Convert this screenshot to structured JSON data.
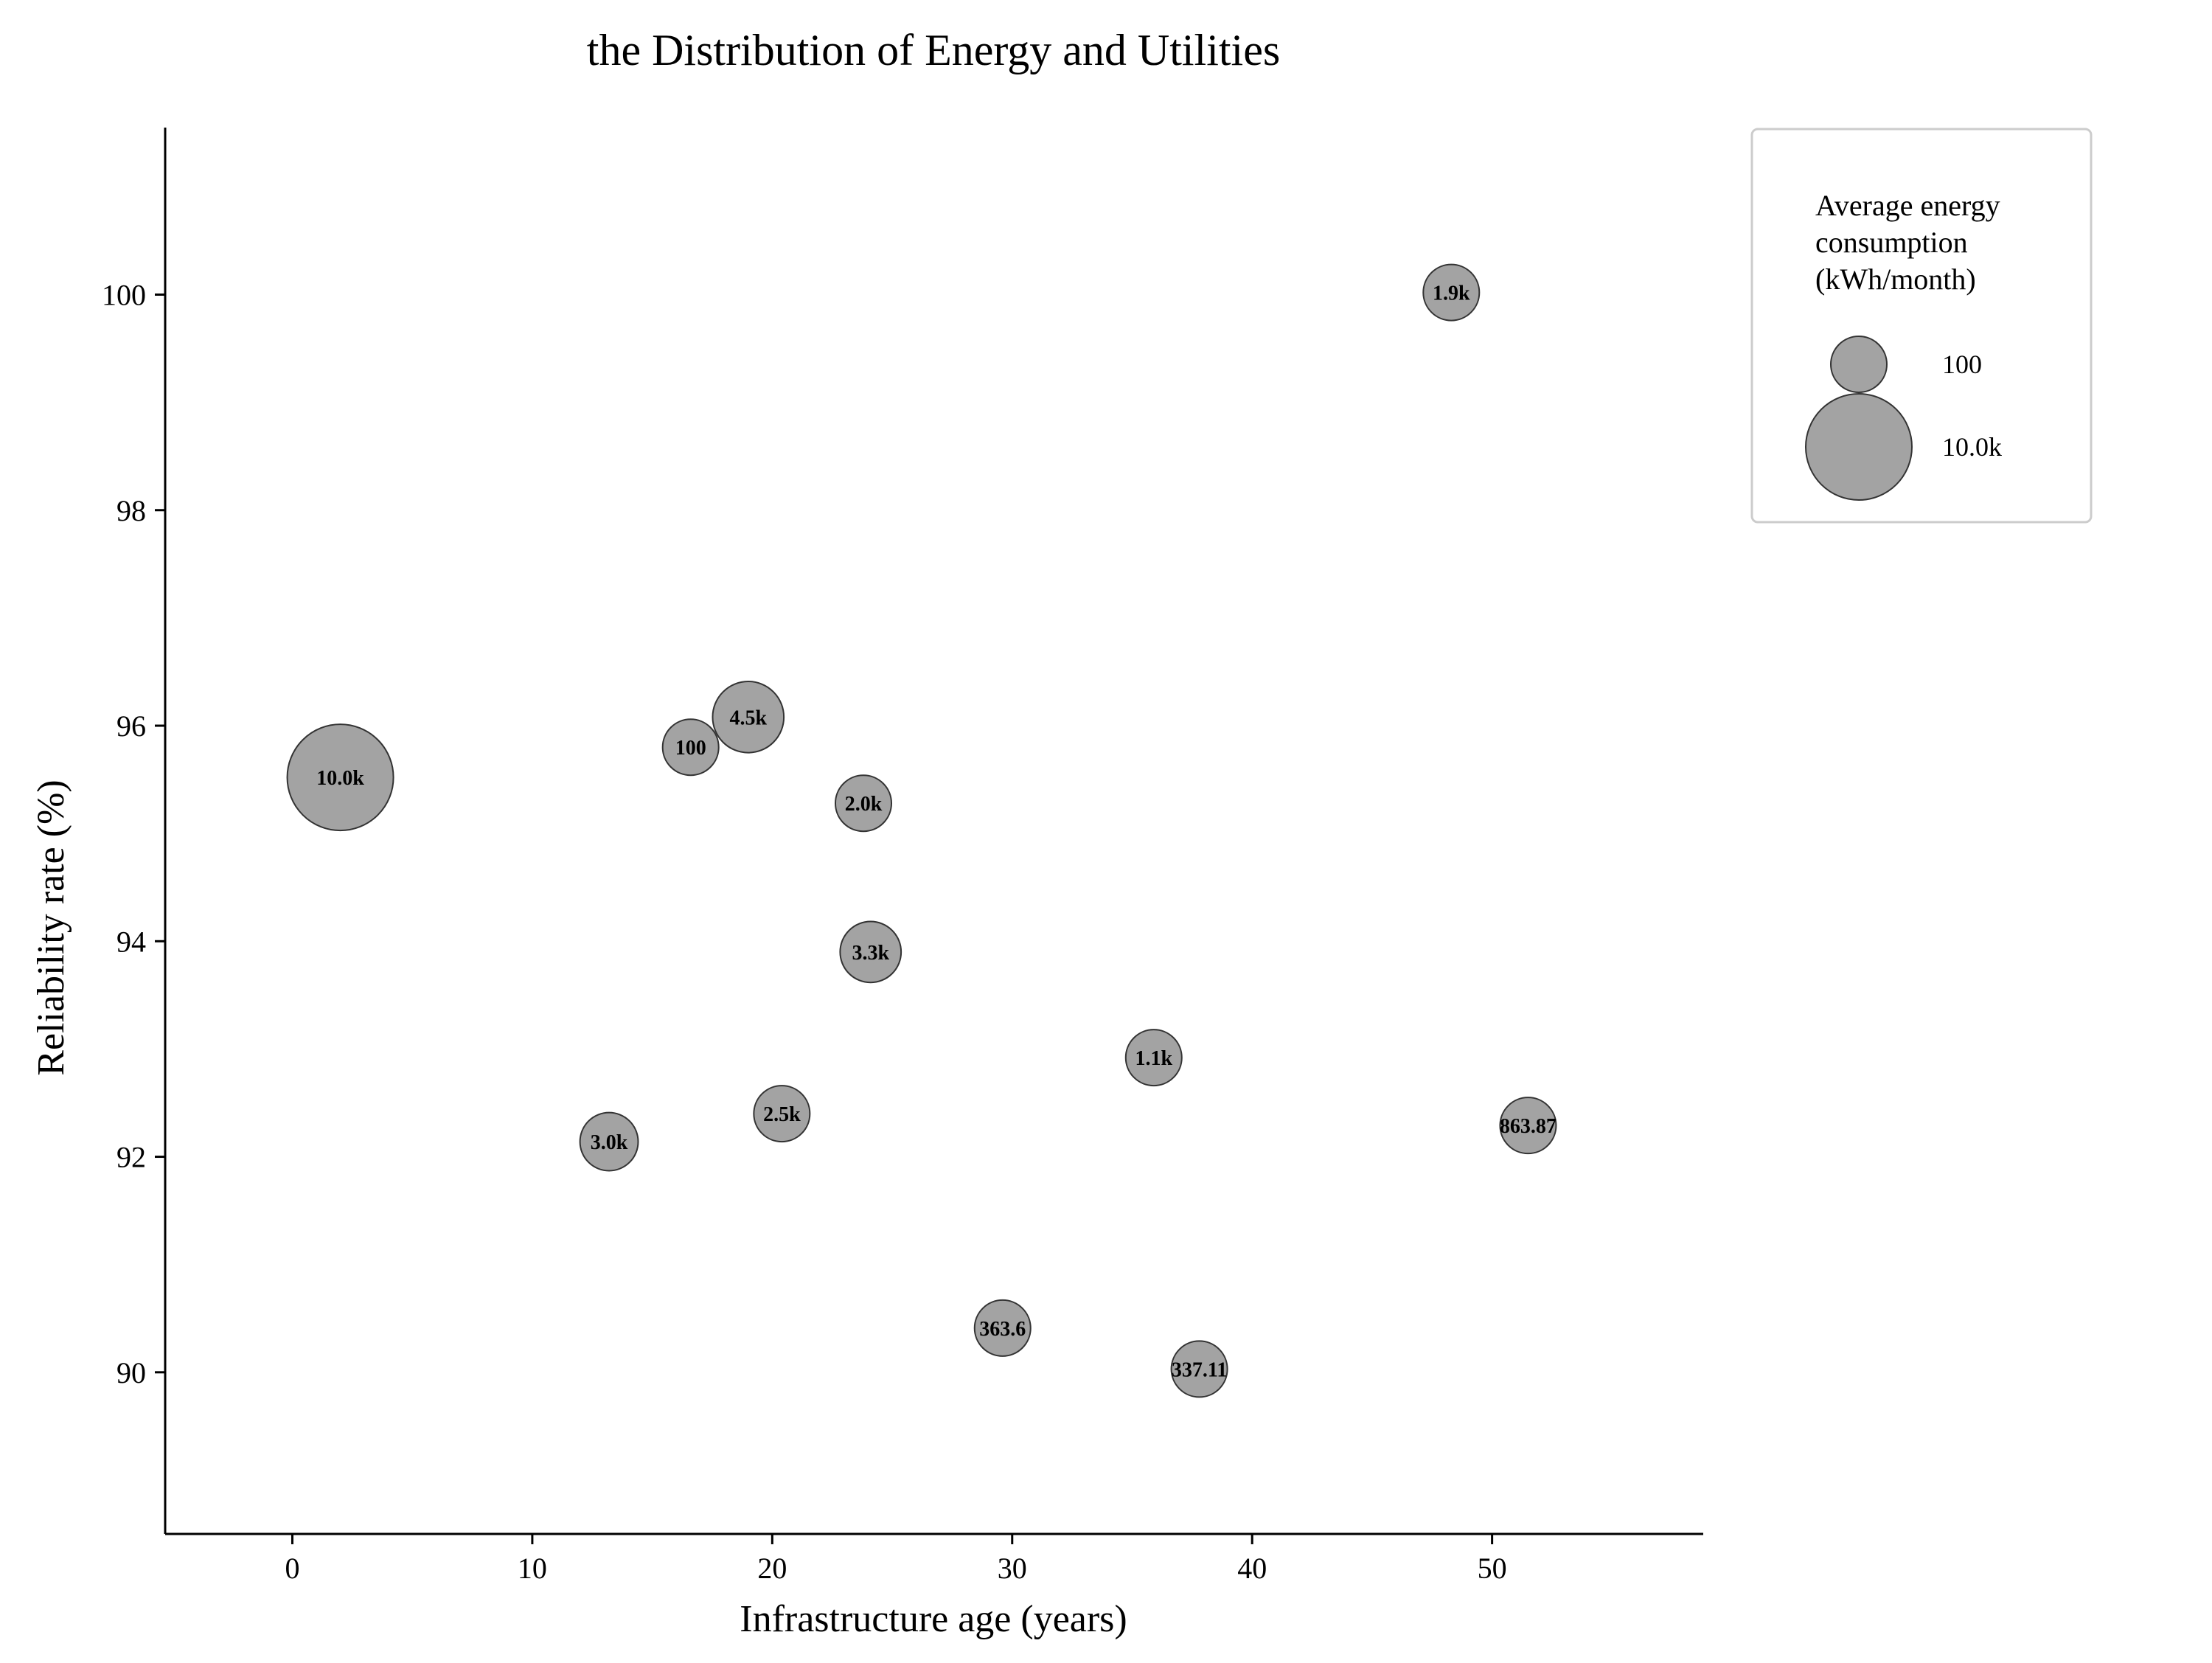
{
  "chart_data": {
    "type": "scatter",
    "title": "the Distribution of Energy and Utilities",
    "xlabel": "Infrastructure age (years)",
    "ylabel": "Reliability rate (%)",
    "xlim": [
      -5.3,
      58.8
    ],
    "ylim": [
      88.5,
      101.55
    ],
    "xticks": [
      0,
      10,
      20,
      30,
      40,
      50
    ],
    "yticks": [
      90,
      92,
      94,
      96,
      98,
      100
    ],
    "grid": false,
    "legend_placement": "outside-top-right",
    "bubble_color": "#a3a3a3",
    "edge_color": "#333333",
    "points": [
      {
        "x": 2.0,
        "y": 95.52,
        "size": 10000,
        "label": "10.0k"
      },
      {
        "x": 16.6,
        "y": 95.8,
        "size": 100,
        "label": "100"
      },
      {
        "x": 19.0,
        "y": 96.08,
        "size": 4500,
        "label": "4.5k"
      },
      {
        "x": 23.8,
        "y": 95.28,
        "size": 2000,
        "label": "2.0k"
      },
      {
        "x": 24.1,
        "y": 93.9,
        "size": 3300,
        "label": "3.3k"
      },
      {
        "x": 13.2,
        "y": 92.14,
        "size": 3000,
        "label": "3.0k"
      },
      {
        "x": 20.4,
        "y": 92.4,
        "size": 2500,
        "label": "2.5k"
      },
      {
        "x": 35.9,
        "y": 92.92,
        "size": 1100,
        "label": "1.1k"
      },
      {
        "x": 29.6,
        "y": 90.41,
        "size": 363.6,
        "label": "363.6"
      },
      {
        "x": 37.8,
        "y": 90.03,
        "size": 337.11,
        "label": "337.11"
      },
      {
        "x": 51.5,
        "y": 92.29,
        "size": 863.87,
        "label": "863.87"
      },
      {
        "x": 48.3,
        "y": 100.02,
        "size": 1900,
        "label": "1.9k"
      }
    ],
    "size_legend": {
      "title_lines": [
        "Average energy",
        "consumption",
        "(kWh/month)"
      ],
      "entries": [
        {
          "value": 100,
          "label": "100"
        },
        {
          "value": 10000,
          "label": "10.0k"
        }
      ]
    }
  }
}
